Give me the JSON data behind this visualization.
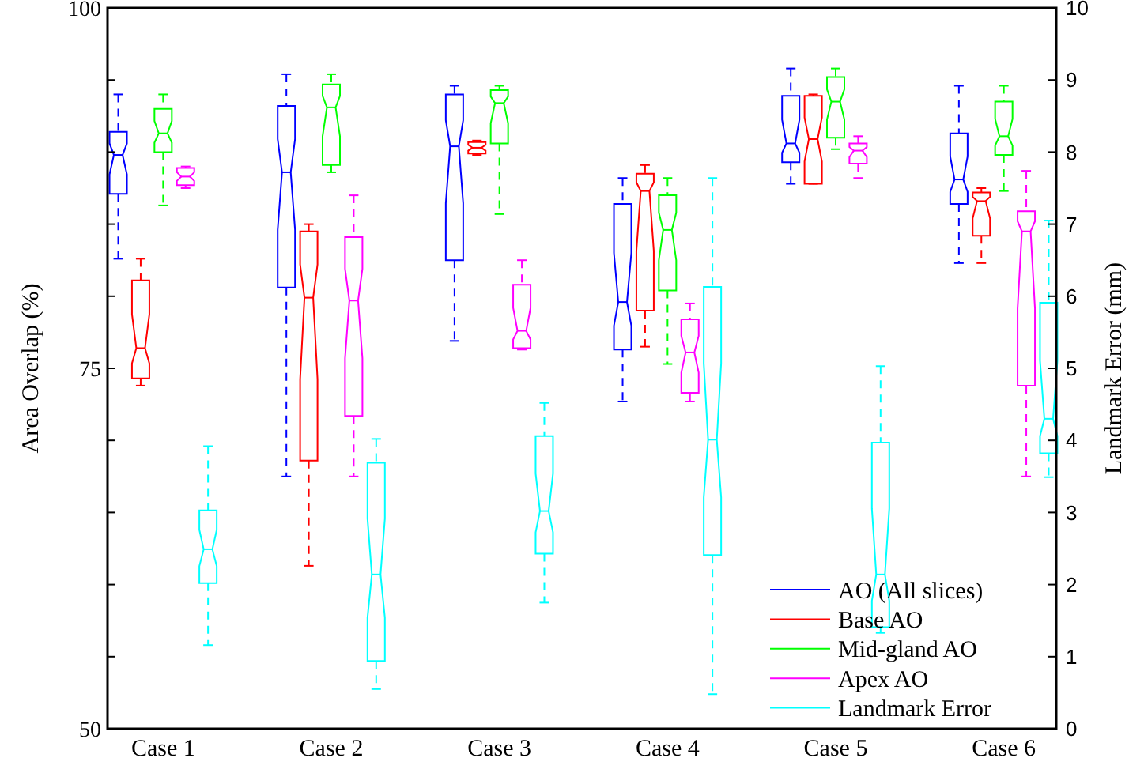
{
  "chart_data": {
    "type": "box",
    "ylabel": "Area Overlap (%)",
    "y2label": "Landmark Error (mm)",
    "categories": [
      "Case 1",
      "Case 2",
      "Case 3",
      "Case 4",
      "Case 5",
      "Case 6"
    ],
    "ylim": [
      50,
      100
    ],
    "yticks": [
      50,
      {
        "value": 55,
        "label": null
      },
      {
        "value": 60,
        "label": null
      },
      {
        "value": 65,
        "label": null
      },
      {
        "value": 70,
        "label": null
      },
      75,
      {
        "value": 80,
        "label": null
      },
      {
        "value": 85,
        "label": null
      },
      {
        "value": 90,
        "label": null
      },
      {
        "value": 95,
        "label": null
      },
      100
    ],
    "y2lim": [
      0,
      10
    ],
    "y2ticks": [
      0,
      1,
      2,
      3,
      4,
      5,
      6,
      7,
      8,
      9,
      10
    ],
    "grid": false,
    "legend": "bottom right",
    "series": [
      {
        "name": "AO (All slices)",
        "color": "#0000ff",
        "boxes": [
          {
            "low": 82.6,
            "q1": 87.1,
            "median": 89.8,
            "q3": 91.4,
            "high": 94.0
          },
          {
            "low": 67.5,
            "q1": 80.6,
            "median": 88.6,
            "q3": 93.2,
            "high": 95.4
          },
          {
            "low": 76.9,
            "q1": 82.5,
            "median": 90.4,
            "q3": 94.0,
            "high": 94.6
          },
          {
            "low": 72.7,
            "q1": 76.3,
            "median": 79.6,
            "q3": 86.4,
            "high": 88.2
          },
          {
            "low": 87.8,
            "q1": 89.3,
            "median": 90.6,
            "q3": 93.9,
            "high": 95.8
          },
          {
            "low": 82.3,
            "q1": 86.4,
            "median": 88.1,
            "q3": 91.3,
            "high": 94.6
          }
        ]
      },
      {
        "name": "Base AO",
        "color": "#ff0000",
        "boxes": [
          {
            "low": 73.8,
            "q1": 74.3,
            "median": 76.4,
            "q3": 81.1,
            "high": 82.6
          },
          {
            "low": 61.3,
            "q1": 68.6,
            "median": 79.9,
            "q3": 84.5,
            "high": 85.0
          },
          {
            "low": 89.8,
            "q1": 89.9,
            "median": 90.3,
            "q3": 90.7,
            "high": 90.8
          },
          {
            "low": 76.5,
            "q1": 79.0,
            "median": 87.3,
            "q3": 88.5,
            "high": 89.1
          },
          {
            "low": 87.8,
            "q1": 87.8,
            "median": 90.9,
            "q3": 93.9,
            "high": 94.0
          },
          {
            "low": 82.3,
            "q1": 84.2,
            "median": 86.6,
            "q3": 87.2,
            "high": 87.5
          }
        ]
      },
      {
        "name": "Mid-gland AO",
        "color": "#00ff00",
        "boxes": [
          {
            "low": 86.3,
            "q1": 90.0,
            "median": 91.3,
            "q3": 93.0,
            "high": 94.0
          },
          {
            "low": 88.6,
            "q1": 89.1,
            "median": 93.1,
            "q3": 94.7,
            "high": 95.4
          },
          {
            "low": 85.7,
            "q1": 90.6,
            "median": 93.4,
            "q3": 94.3,
            "high": 94.6
          },
          {
            "low": 75.3,
            "q1": 80.4,
            "median": 84.6,
            "q3": 87.0,
            "high": 88.2
          },
          {
            "low": 90.2,
            "q1": 91.0,
            "median": 93.5,
            "q3": 95.2,
            "high": 95.8
          },
          {
            "low": 87.3,
            "q1": 89.8,
            "median": 91.1,
            "q3": 93.5,
            "high": 94.6
          }
        ]
      },
      {
        "name": "Apex AO",
        "color": "#ff00ff",
        "boxes": [
          {
            "low": 87.5,
            "q1": 87.7,
            "median": 88.3,
            "q3": 88.9,
            "high": 89.0
          },
          {
            "low": 67.5,
            "q1": 71.7,
            "median": 79.7,
            "q3": 84.1,
            "high": 87.0
          },
          {
            "low": 76.3,
            "q1": 76.4,
            "median": 77.6,
            "q3": 80.8,
            "high": 82.5
          },
          {
            "low": 72.7,
            "q1": 73.3,
            "median": 76.1,
            "q3": 78.4,
            "high": 79.5
          },
          {
            "low": 88.2,
            "q1": 89.2,
            "median": 90.1,
            "q3": 90.6,
            "high": 91.1
          },
          {
            "low": 67.5,
            "q1": 73.8,
            "median": 84.5,
            "q3": 85.9,
            "high": 88.7
          }
        ]
      },
      {
        "name": "Landmark Error",
        "color": "#00ffff",
        "axis": "y2",
        "boxes": [
          {
            "low": 1.16,
            "q1": 2.02,
            "median": 2.49,
            "q3": 3.03,
            "high": 3.92
          },
          {
            "low": 0.55,
            "q1": 0.94,
            "median": 2.14,
            "q3": 3.69,
            "high": 4.02
          },
          {
            "low": 1.75,
            "q1": 2.43,
            "median": 3.02,
            "q3": 4.06,
            "high": 4.52
          },
          {
            "low": 0.48,
            "q1": 2.41,
            "median": 4.01,
            "q3": 6.13,
            "high": 7.64
          },
          {
            "low": 1.33,
            "q1": 1.41,
            "median": 2.14,
            "q3": 3.97,
            "high": 5.03
          },
          {
            "low": 3.49,
            "q1": 3.82,
            "median": 4.3,
            "q3": 5.91,
            "high": 7.05
          }
        ]
      }
    ]
  }
}
